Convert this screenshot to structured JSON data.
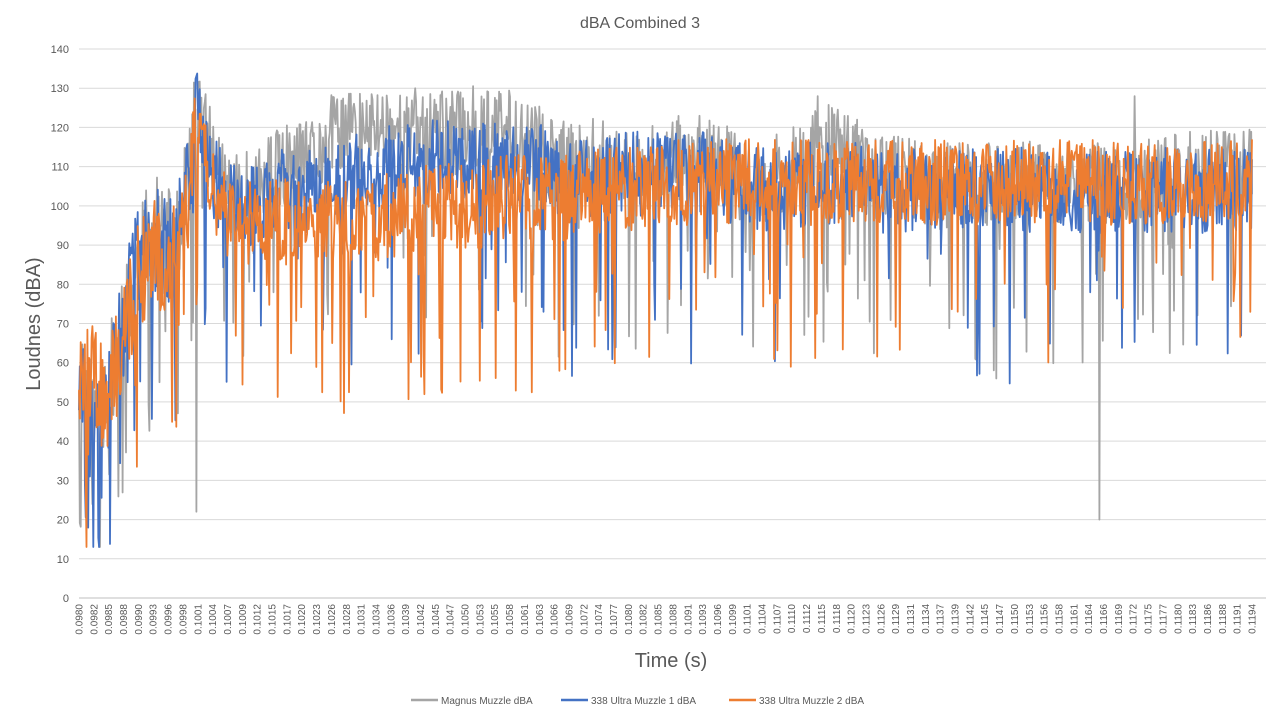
{
  "chart_data": {
    "type": "line",
    "title": "dBA Combined 3",
    "xlabel": "Time (s)",
    "ylabel": "Loudnes (dBA)",
    "ylim": [
      0,
      140
    ],
    "y_ticks": [
      0,
      10,
      20,
      30,
      40,
      50,
      60,
      70,
      80,
      90,
      100,
      110,
      120,
      130,
      140
    ],
    "grid": true,
    "legend_position": "bottom",
    "categories": [
      "0.0980",
      "0.0982",
      "0.0985",
      "0.0988",
      "0.0990",
      "0.0993",
      "0.0996",
      "0.0998",
      "0.1001",
      "0.1004",
      "0.1007",
      "0.1009",
      "0.1012",
      "0.1015",
      "0.1017",
      "0.1020",
      "0.1023",
      "0.1026",
      "0.1028",
      "0.1031",
      "0.1034",
      "0.1036",
      "0.1039",
      "0.1042",
      "0.1045",
      "0.1047",
      "0.1050",
      "0.1053",
      "0.1055",
      "0.1058",
      "0.1061",
      "0.1063",
      "0.1066",
      "0.1069",
      "0.1072",
      "0.1074",
      "0.1077",
      "0.1080",
      "0.1082",
      "0.1085",
      "0.1088",
      "0.1091",
      "0.1093",
      "0.1096",
      "0.1099",
      "0.1101",
      "0.1104",
      "0.1107",
      "0.1110",
      "0.1112",
      "0.1115",
      "0.1118",
      "0.1120",
      "0.1123",
      "0.1126",
      "0.1129",
      "0.1131",
      "0.1134",
      "0.1137",
      "0.1139",
      "0.1142",
      "0.1145",
      "0.1147",
      "0.1150",
      "0.1153",
      "0.1156",
      "0.1158",
      "0.1161",
      "0.1164",
      "0.1166",
      "0.1169",
      "0.1172",
      "0.1175",
      "0.1177",
      "0.1180",
      "0.1183",
      "0.1186",
      "0.1188",
      "0.1191",
      "0.1194"
    ],
    "series": [
      {
        "name": "Magnus Muzzle dBA",
        "color": "#A5A5A5",
        "values": [
          60,
          45,
          55,
          70,
          85,
          95,
          90,
          98,
          125,
          112,
          105,
          102,
          105,
          108,
          110,
          110,
          112,
          118,
          120,
          118,
          120,
          120,
          118,
          120,
          120,
          118,
          120,
          120,
          118,
          120,
          118,
          115,
          112,
          110,
          110,
          112,
          110,
          110,
          110,
          110,
          112,
          112,
          112,
          110,
          110,
          105,
          100,
          108,
          110,
          112,
          115,
          115,
          112,
          110,
          108,
          108,
          108,
          106,
          105,
          105,
          105,
          105,
          105,
          106,
          106,
          106,
          106,
          106,
          106,
          106,
          106,
          106,
          106,
          106,
          108,
          108,
          108,
          110,
          110,
          110
        ],
        "peaks": [
          [
            0.1,
            22
          ],
          [
            0.63,
            128
          ],
          [
            0.87,
            20
          ],
          [
            0.9,
            128
          ]
        ]
      },
      {
        "name": "338 Ultra Muzzle 1 dBA",
        "color": "#4472C4",
        "values": [
          55,
          40,
          50,
          72,
          88,
          92,
          88,
          95,
          128,
          108,
          100,
          100,
          100,
          102,
          104,
          104,
          104,
          106,
          106,
          108,
          108,
          110,
          110,
          110,
          112,
          112,
          112,
          112,
          112,
          112,
          112,
          110,
          108,
          106,
          106,
          106,
          108,
          108,
          108,
          108,
          108,
          108,
          108,
          106,
          106,
          104,
          104,
          104,
          104,
          106,
          106,
          106,
          106,
          104,
          104,
          104,
          104,
          104,
          104,
          104,
          104,
          104,
          104,
          104,
          104,
          104,
          104,
          104,
          104,
          104,
          104,
          104,
          104,
          104,
          104,
          104,
          104,
          104,
          104,
          104
        ]
      },
      {
        "name": "338 Ultra Muzzle 2 dBA",
        "color": "#ED7D31",
        "values": [
          60,
          55,
          50,
          68,
          82,
          88,
          85,
          90,
          128,
          105,
          98,
          96,
          96,
          96,
          96,
          96,
          96,
          96,
          96,
          96,
          96,
          98,
          98,
          100,
          100,
          100,
          100,
          100,
          102,
          102,
          102,
          102,
          102,
          102,
          104,
          104,
          104,
          104,
          104,
          104,
          106,
          106,
          106,
          106,
          106,
          106,
          106,
          106,
          106,
          106,
          106,
          106,
          106,
          106,
          106,
          106,
          106,
          106,
          106,
          106,
          106,
          106,
          106,
          106,
          106,
          106,
          106,
          106,
          106,
          106,
          106,
          106,
          106,
          106,
          106,
          106,
          106,
          106,
          106,
          106
        ]
      }
    ]
  }
}
